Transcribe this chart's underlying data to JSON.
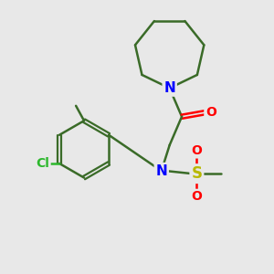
{
  "bg_color": "#e8e8e8",
  "bond_color": "#3a6b28",
  "n_color": "#0000ff",
  "o_color": "#ff0000",
  "s_color": "#b8b800",
  "cl_color": "#2db82d",
  "line_width": 1.8,
  "font_size": 10,
  "figsize": [
    3.0,
    3.0
  ],
  "dpi": 100,
  "xlim": [
    0,
    10
  ],
  "ylim": [
    0,
    10
  ]
}
